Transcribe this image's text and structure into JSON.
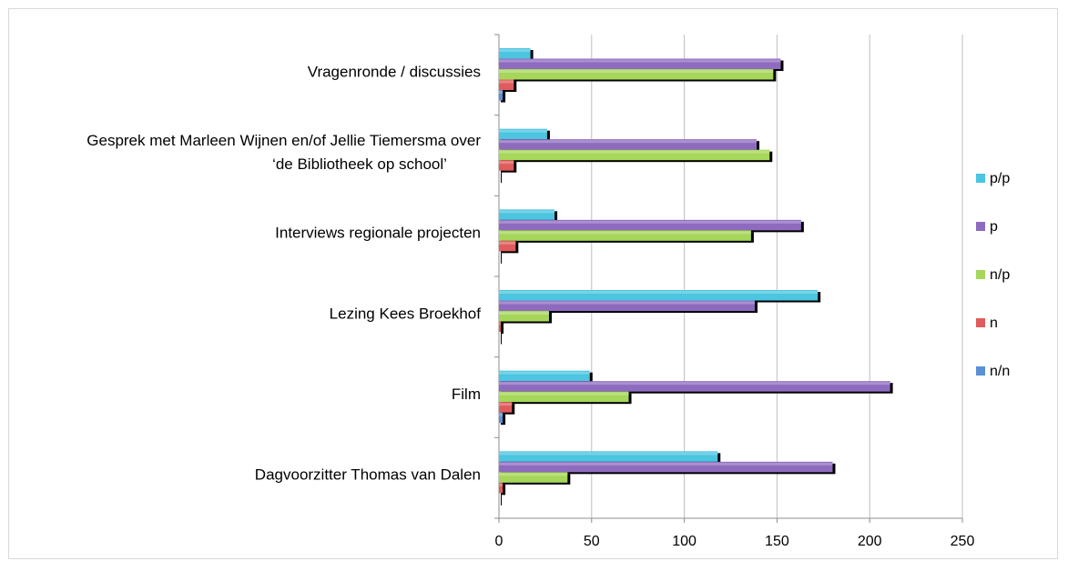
{
  "chart_data": {
    "type": "bar",
    "orientation": "horizontal",
    "categories": [
      [
        "Vragenronde / discussies"
      ],
      [
        "Gesprek met Marleen Wijnen en/of Jellie Tiemersma over",
        "‘de Bibliotheek op school’"
      ],
      [
        "Interviews regionale projecten"
      ],
      [
        "Lezing Kees Broekhof"
      ],
      [
        "Film"
      ],
      [
        "Dagvoorzitter Thomas van Dalen"
      ]
    ],
    "series": [
      {
        "name": "p/p",
        "color": "#4bc5e0",
        "values": [
          17,
          26,
          30,
          172,
          49,
          118
        ]
      },
      {
        "name": "p",
        "color": "#8e6bbf",
        "values": [
          152,
          139,
          163,
          138,
          211,
          180
        ]
      },
      {
        "name": "n/p",
        "color": "#a6d65a",
        "values": [
          148,
          146,
          136,
          27,
          70,
          37
        ]
      },
      {
        "name": "n",
        "color": "#e05c5c",
        "values": [
          8,
          8,
          9,
          1,
          7,
          2
        ]
      },
      {
        "name": "n/n",
        "color": "#5b8fd6",
        "values": [
          2,
          0,
          0,
          0,
          2,
          0
        ]
      }
    ],
    "legend_order": [
      "p/p",
      "p",
      "n/p",
      "n",
      "n/n"
    ],
    "xlim": [
      0,
      250
    ],
    "x_ticks": [
      "0",
      "50",
      "100",
      "150",
      "200",
      "250"
    ],
    "grid": true,
    "legend_position": "right",
    "title": "",
    "xlabel": "",
    "ylabel": ""
  }
}
